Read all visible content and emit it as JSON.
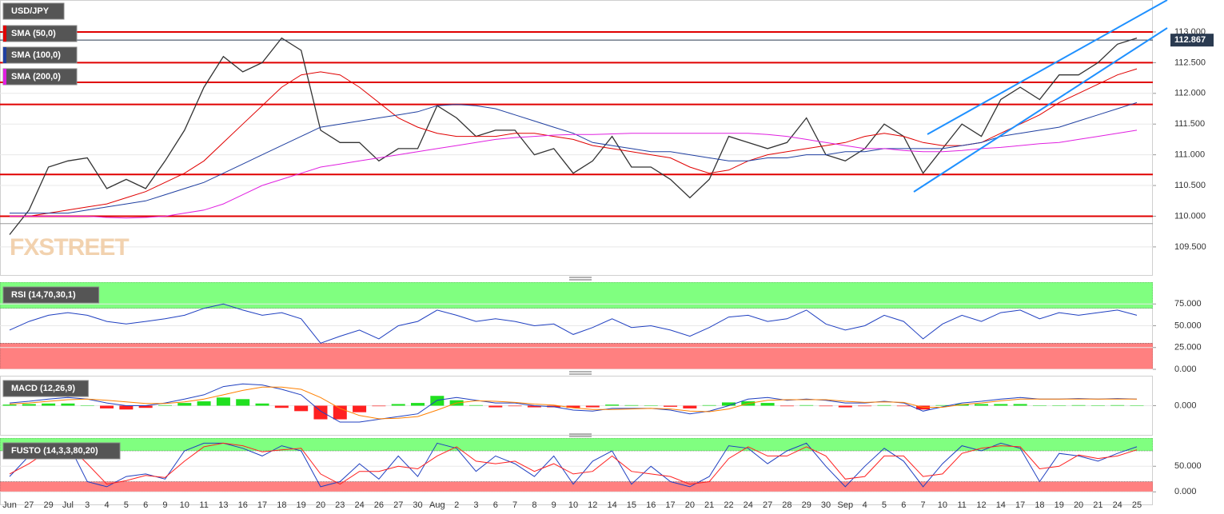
{
  "chart_data": [
    {
      "type": "line",
      "title": "USD/JPY",
      "watermark": "FXSTREET",
      "categories": [
        "Jun",
        "27",
        "29",
        "Jul",
        "3",
        "4",
        "5",
        "6",
        "9",
        "10",
        "11",
        "13",
        "16",
        "17",
        "18",
        "19",
        "20",
        "23",
        "24",
        "26",
        "27",
        "30",
        "Aug",
        "2",
        "3",
        "6",
        "7",
        "8",
        "9",
        "10",
        "12",
        "14",
        "15",
        "16",
        "17",
        "20",
        "21",
        "22",
        "24",
        "27",
        "28",
        "29",
        "30",
        "Sep",
        "4",
        "5",
        "6",
        "7",
        "10",
        "11",
        "12",
        "14",
        "17",
        "18",
        "19",
        "20",
        "21",
        "24",
        "25"
      ],
      "series": [
        {
          "color": "#333333",
          "values": [
            109.7,
            110.1,
            110.8,
            110.9,
            110.95,
            110.45,
            110.6,
            110.45,
            110.9,
            111.4,
            112.1,
            112.6,
            112.35,
            112.5,
            112.9,
            112.7,
            111.4,
            111.2,
            111.2,
            110.9,
            111.1,
            111.1,
            111.8,
            111.6,
            111.3,
            111.4,
            111.4,
            111.0,
            111.1,
            110.7,
            110.9,
            111.3,
            110.8,
            110.8,
            110.6,
            110.3,
            110.6,
            111.3,
            111.2,
            111.1,
            111.2,
            111.6,
            111.0,
            110.9,
            111.1,
            111.5,
            111.3,
            110.7,
            111.1,
            111.5,
            111.3,
            111.9,
            112.1,
            111.9,
            112.3,
            112.3,
            112.5,
            112.8,
            112.9
          ]
        },
        {
          "name": "SMA (50,0)",
          "color": "#e00000",
          "values": [
            110.0,
            110.0,
            110.05,
            110.1,
            110.15,
            110.2,
            110.3,
            110.4,
            110.55,
            110.7,
            110.9,
            111.2,
            111.5,
            111.8,
            112.1,
            112.3,
            112.35,
            112.3,
            112.1,
            111.85,
            111.6,
            111.45,
            111.35,
            111.3,
            111.3,
            111.3,
            111.35,
            111.35,
            111.3,
            111.25,
            111.15,
            111.1,
            111.05,
            111.0,
            110.95,
            110.8,
            110.7,
            110.75,
            110.9,
            111.0,
            111.05,
            111.1,
            111.15,
            111.2,
            111.3,
            111.35,
            111.3,
            111.2,
            111.15,
            111.15,
            111.2,
            111.35,
            111.5,
            111.65,
            111.85,
            112.0,
            112.15,
            112.3,
            112.4
          ]
        },
        {
          "name": "SMA (100,0)",
          "color": "#1f3fa0",
          "values": [
            110.05,
            110.05,
            110.05,
            110.05,
            110.1,
            110.15,
            110.2,
            110.25,
            110.35,
            110.45,
            110.55,
            110.7,
            110.85,
            111.0,
            111.15,
            111.3,
            111.45,
            111.5,
            111.55,
            111.6,
            111.65,
            111.7,
            111.8,
            111.82,
            111.8,
            111.75,
            111.65,
            111.55,
            111.45,
            111.35,
            111.2,
            111.15,
            111.1,
            111.05,
            111.05,
            111.0,
            110.95,
            110.9,
            110.9,
            110.95,
            110.95,
            111.0,
            111.0,
            111.05,
            111.05,
            111.1,
            111.1,
            111.1,
            111.1,
            111.15,
            111.2,
            111.3,
            111.35,
            111.4,
            111.45,
            111.55,
            111.65,
            111.75,
            111.85
          ]
        },
        {
          "name": "SMA (200,0)",
          "color": "#e020e0",
          "values": [
            110.0,
            110.0,
            110.0,
            110.0,
            110.0,
            109.98,
            109.97,
            109.98,
            110.0,
            110.05,
            110.1,
            110.2,
            110.35,
            110.5,
            110.6,
            110.7,
            110.8,
            110.85,
            110.9,
            110.95,
            111.0,
            111.05,
            111.1,
            111.15,
            111.2,
            111.25,
            111.28,
            111.3,
            111.32,
            111.33,
            111.33,
            111.34,
            111.35,
            111.35,
            111.35,
            111.35,
            111.35,
            111.35,
            111.35,
            111.33,
            111.3,
            111.25,
            111.2,
            111.15,
            111.1,
            111.1,
            111.07,
            111.05,
            111.05,
            111.07,
            111.1,
            111.12,
            111.15,
            111.18,
            111.2,
            111.25,
            111.3,
            111.35,
            111.4
          ]
        }
      ],
      "hlines": [
        {
          "value": 113.0,
          "color": "#e00000"
        },
        {
          "value": 112.5,
          "color": "#e00000"
        },
        {
          "value": 112.18,
          "color": "#e00000"
        },
        {
          "value": 111.82,
          "color": "#e00000"
        },
        {
          "value": 110.68,
          "color": "#e00000"
        },
        {
          "value": 110.0,
          "color": "#e00000"
        },
        {
          "value": 109.88,
          "color": "#999999"
        }
      ],
      "last_value": 112.867,
      "ylim": [
        109.03,
        113.52
      ],
      "yticks": [
        {
          "value": 109.5,
          "label": "109.500"
        },
        {
          "value": 110.0,
          "label": "110.000"
        },
        {
          "value": 110.5,
          "label": "110.500"
        },
        {
          "value": 111.0,
          "label": "111.000"
        },
        {
          "value": 111.5,
          "label": "111.500"
        },
        {
          "value": 112.0,
          "label": "112.000"
        },
        {
          "value": 112.5,
          "label": "112.500"
        },
        {
          "value": 113.0,
          "label": "113.000"
        }
      ]
    },
    {
      "type": "line",
      "title": "RSI (14,70,30,1)",
      "zones": [
        {
          "range": [
            70,
            100
          ],
          "color": "#80ff80"
        },
        {
          "range": [
            0,
            30
          ],
          "color": "#ff8080"
        }
      ],
      "series": [
        {
          "color": "#1f3fc0",
          "values": [
            45,
            55,
            62,
            65,
            62,
            55,
            52,
            55,
            58,
            62,
            70,
            75,
            68,
            62,
            65,
            58,
            30,
            38,
            45,
            35,
            50,
            55,
            68,
            62,
            55,
            58,
            55,
            50,
            52,
            40,
            48,
            58,
            48,
            50,
            45,
            38,
            48,
            60,
            62,
            55,
            58,
            68,
            52,
            45,
            50,
            62,
            55,
            35,
            52,
            62,
            55,
            65,
            68,
            58,
            65,
            62,
            65,
            68,
            62
          ]
        }
      ],
      "ylim": [
        0,
        100
      ],
      "yticks": [
        {
          "value": 0,
          "label": "0.000"
        },
        {
          "value": 25,
          "label": "25.000"
        },
        {
          "value": 50,
          "label": "50.000"
        },
        {
          "value": 75,
          "label": "75.000"
        }
      ]
    },
    {
      "type": "line",
      "title": "MACD (12,26,9)",
      "histogram": {
        "positive_color": "#20e020",
        "negative_color": "#ff2020",
        "values": [
          0.02,
          0.03,
          0.04,
          0.04,
          0,
          -0.05,
          -0.07,
          -0.04,
          0.01,
          0.05,
          0.08,
          0.15,
          0.12,
          0.04,
          -0.04,
          -0.1,
          -0.25,
          -0.25,
          -0.12,
          -0.01,
          0.03,
          0.05,
          0.18,
          0.1,
          0.01,
          -0.03,
          -0.01,
          -0.03,
          -0.03,
          -0.04,
          -0.03,
          0.02,
          0.01,
          0,
          -0.02,
          -0.05,
          0.01,
          0.06,
          0.08,
          0.05,
          -0.01,
          0.01,
          -0.01,
          -0.03,
          -0.01,
          0.01,
          -0.01,
          -0.07,
          0.01,
          0.03,
          0.03,
          0.03,
          0.03,
          0,
          0,
          0.01,
          0,
          0.01,
          0
        ]
      },
      "series": [
        {
          "color": "#1f3fc0",
          "values": [
            0.05,
            0.08,
            0.12,
            0.15,
            0.12,
            0.05,
            0.0,
            0.0,
            0.05,
            0.12,
            0.2,
            0.35,
            0.4,
            0.38,
            0.3,
            0.2,
            -0.1,
            -0.3,
            -0.3,
            -0.25,
            -0.2,
            -0.15,
            0.1,
            0.15,
            0.1,
            0.05,
            0.05,
            0.0,
            -0.02,
            -0.08,
            -0.1,
            -0.05,
            -0.05,
            -0.05,
            -0.08,
            -0.15,
            -0.1,
            0.0,
            0.12,
            0.15,
            0.1,
            0.12,
            0.1,
            0.05,
            0.05,
            0.08,
            0.05,
            -0.1,
            -0.02,
            0.05,
            0.08,
            0.12,
            0.15,
            0.12,
            0.12,
            0.13,
            0.12,
            0.13,
            0.12
          ]
        },
        {
          "color": "#ff8000",
          "values": [
            0.03,
            0.05,
            0.08,
            0.11,
            0.12,
            0.1,
            0.07,
            0.04,
            0.04,
            0.07,
            0.12,
            0.2,
            0.28,
            0.34,
            0.34,
            0.3,
            0.15,
            -0.05,
            -0.18,
            -0.24,
            -0.23,
            -0.2,
            -0.08,
            0.05,
            0.09,
            0.08,
            0.06,
            0.03,
            0.01,
            -0.04,
            -0.07,
            -0.07,
            -0.06,
            -0.05,
            -0.06,
            -0.1,
            -0.11,
            -0.06,
            0.04,
            0.1,
            0.11,
            0.11,
            0.11,
            0.08,
            0.06,
            0.07,
            0.06,
            -0.03,
            -0.03,
            0.02,
            0.05,
            0.09,
            0.12,
            0.12,
            0.12,
            0.12,
            0.12,
            0.12,
            0.12
          ]
        }
      ],
      "ylim": [
        -0.55,
        0.55
      ],
      "yticks": [
        {
          "value": 0,
          "label": "0.000"
        }
      ]
    },
    {
      "type": "line",
      "title": "FUSTO (14,3,3,80,20)",
      "zones": [
        {
          "range": [
            80,
            105
          ],
          "color": "#80ff80"
        },
        {
          "range": [
            0,
            20
          ],
          "color": "#ff8080"
        }
      ],
      "series": [
        {
          "color": "#1f3fc0",
          "values": [
            30,
            70,
            90,
            95,
            20,
            10,
            30,
            35,
            25,
            80,
            95,
            95,
            85,
            70,
            90,
            80,
            10,
            20,
            55,
            25,
            70,
            30,
            95,
            85,
            40,
            70,
            55,
            30,
            70,
            15,
            60,
            80,
            15,
            50,
            20,
            10,
            30,
            90,
            85,
            55,
            80,
            95,
            50,
            10,
            50,
            85,
            60,
            10,
            55,
            90,
            80,
            95,
            85,
            20,
            75,
            70,
            60,
            75,
            88
          ]
        },
        {
          "color": "#ff2020",
          "values": [
            35,
            55,
            80,
            92,
            55,
            15,
            22,
            32,
            28,
            60,
            88,
            95,
            90,
            78,
            82,
            85,
            35,
            15,
            40,
            40,
            50,
            45,
            70,
            88,
            60,
            55,
            60,
            40,
            55,
            35,
            40,
            70,
            40,
            35,
            30,
            15,
            20,
            65,
            88,
            70,
            70,
            88,
            70,
            25,
            30,
            70,
            70,
            30,
            35,
            75,
            85,
            90,
            88,
            45,
            50,
            72,
            65,
            70,
            82
          ]
        }
      ],
      "ylim": [
        -26,
        105
      ],
      "yticks": [
        {
          "value": 0,
          "label": "0.000"
        },
        {
          "value": 50,
          "label": "50.000"
        }
      ]
    }
  ]
}
